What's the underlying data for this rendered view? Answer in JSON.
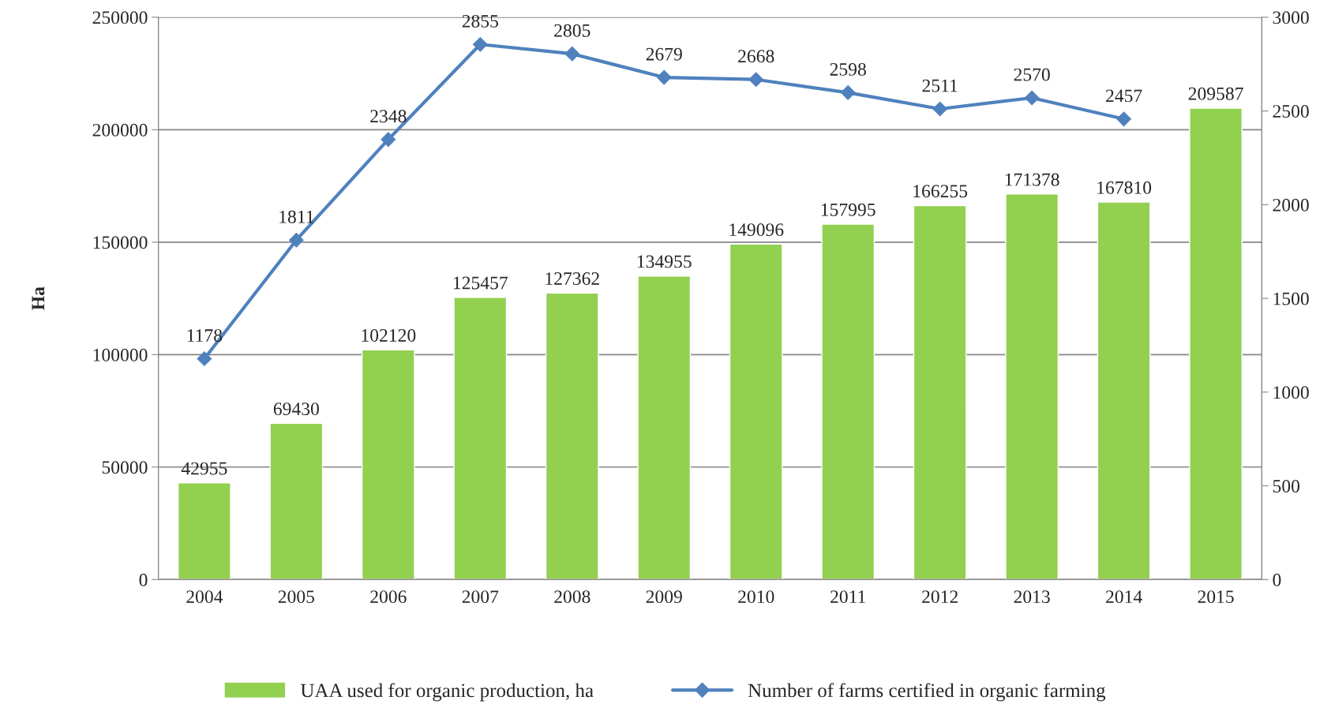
{
  "chart_data": {
    "type": "bar",
    "ylabel": "Ha",
    "categories": [
      "2004",
      "2005",
      "2006",
      "2007",
      "2008",
      "2009",
      "2010",
      "2011",
      "2012",
      "2013",
      "2014",
      "2015"
    ],
    "series": [
      {
        "name": "UAA used for organic production, ha",
        "color": "#92d050",
        "values": [
          42955,
          69430,
          102120,
          125457,
          127362,
          134955,
          149096,
          157995,
          166255,
          171378,
          167810,
          209587
        ]
      },
      {
        "name": "Number of farms certified in organic farming",
        "type": "line",
        "axis": "y2",
        "color": "#4f81bd",
        "values": [
          1178,
          1811,
          2348,
          2855,
          2805,
          2679,
          2668,
          2598,
          2511,
          2570,
          2457,
          null
        ]
      }
    ],
    "ylim": [
      0,
      250000
    ],
    "yticks": [
      0,
      50000,
      100000,
      150000,
      200000,
      250000
    ],
    "y2lim": [
      0,
      3000
    ],
    "y2ticks": [
      0,
      500,
      1000,
      1500,
      2000,
      2500,
      3000
    ],
    "data_labels": true,
    "grid": "y",
    "legend": "bottom",
    "marker": "diamond",
    "line_style": "solid"
  }
}
